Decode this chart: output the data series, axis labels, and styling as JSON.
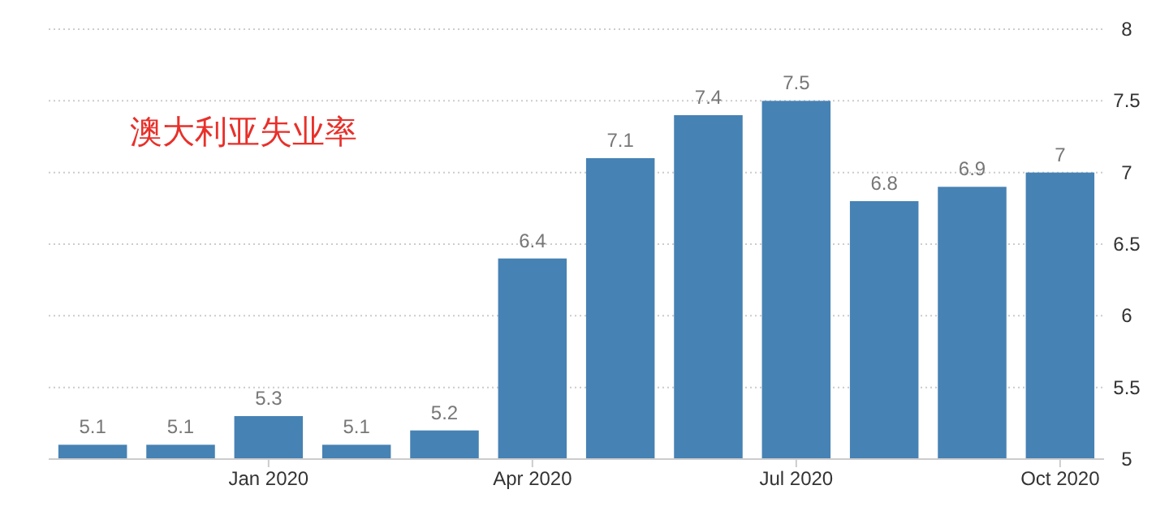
{
  "chart_data": {
    "type": "bar",
    "title": "澳大利亚失业率",
    "categories": [
      null,
      null,
      "Jan 2020",
      null,
      null,
      "Apr 2020",
      null,
      null,
      "Jul 2020",
      null,
      null,
      "Oct 2020"
    ],
    "values": [
      5.1,
      5.1,
      5.3,
      5.1,
      5.2,
      6.4,
      7.1,
      7.4,
      7.5,
      6.8,
      6.9,
      7
    ],
    "color": "#4682b4",
    "ylim": [
      5,
      8
    ],
    "yticks": [
      5,
      5.5,
      6,
      6.5,
      7,
      7.5,
      8
    ],
    "grid": "y",
    "data_labels": true
  }
}
